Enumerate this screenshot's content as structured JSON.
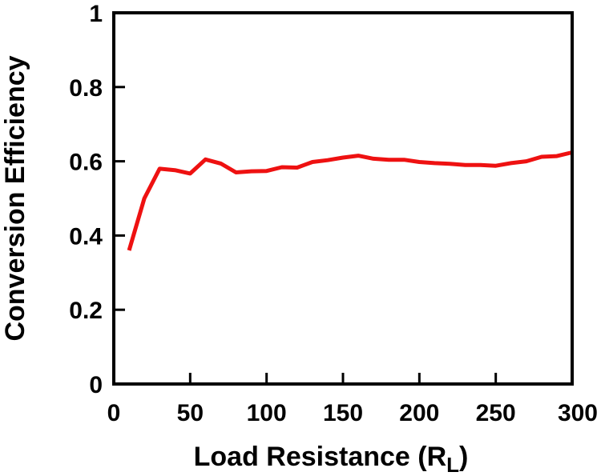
{
  "chart_data": {
    "type": "line",
    "title": "",
    "xlabel": "Load Resistance (R",
    "xlabel_sub": "L",
    "xlabel_close": ")",
    "ylabel": "Conversion Efficiency",
    "xlim": [
      0,
      300
    ],
    "ylim": [
      0,
      1
    ],
    "xticks": [
      0,
      50,
      100,
      150,
      200,
      250,
      300
    ],
    "yticks": [
      0,
      0.2,
      0.4,
      0.6,
      0.8,
      1
    ],
    "ytick_labels": [
      "0",
      "0.2",
      "0.4",
      "0.6",
      "0.8",
      "1"
    ],
    "grid": false,
    "series": [
      {
        "color": "#ee1111",
        "x": [
          10,
          20,
          30,
          40,
          50,
          60,
          70,
          80,
          90,
          100,
          110,
          120,
          130,
          140,
          150,
          160,
          170,
          180,
          190,
          200,
          210,
          220,
          230,
          240,
          250,
          260,
          270,
          280,
          290,
          300
        ],
        "y": [
          0.36,
          0.5,
          0.58,
          0.576,
          0.567,
          0.605,
          0.594,
          0.57,
          0.573,
          0.574,
          0.584,
          0.583,
          0.598,
          0.603,
          0.61,
          0.615,
          0.607,
          0.604,
          0.604,
          0.598,
          0.595,
          0.593,
          0.59,
          0.59,
          0.588,
          0.595,
          0.6,
          0.612,
          0.614,
          0.624
        ]
      }
    ]
  }
}
